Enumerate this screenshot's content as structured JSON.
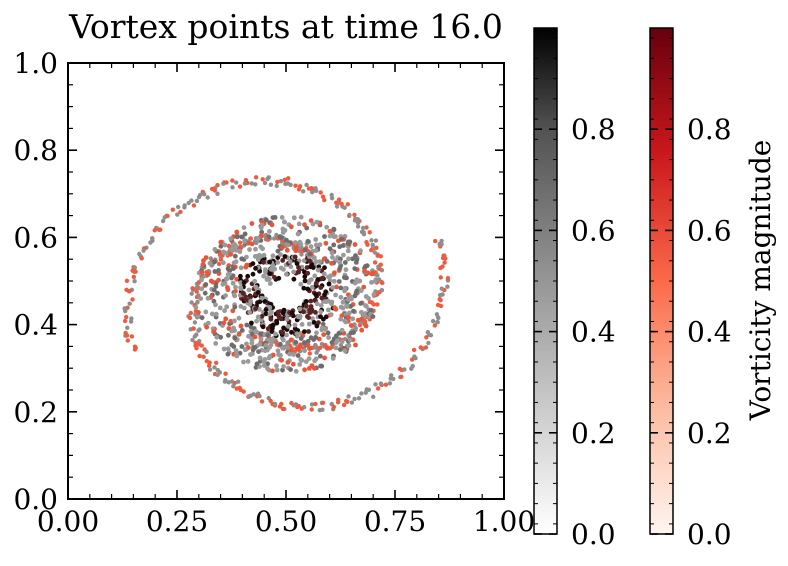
{
  "chart_data": {
    "type": "scatter",
    "title": "Vortex points at time 16.0",
    "xlabel": "",
    "ylabel": "",
    "xlim": [
      0.0,
      1.0
    ],
    "ylim": [
      0.0,
      1.0
    ],
    "x_ticks": [
      "0.00",
      "0.25",
      "0.50",
      "0.75",
      "1.00"
    ],
    "y_ticks": [
      "0.0",
      "0.2",
      "0.4",
      "0.6",
      "0.8",
      "1.0"
    ],
    "grid": false,
    "description_series": "two-armed spiral vortex centred near (0.5, 0.47)",
    "series": [
      {
        "name": "vortex points (grey colormap)",
        "colormap": "Greys",
        "count_estimate": 1400
      },
      {
        "name": "vortex points (red colormap)",
        "colormap": "Reds",
        "count_estimate": 600
      }
    ],
    "colorbars": [
      {
        "name": "greys",
        "label": "",
        "range": [
          0.0,
          1.0
        ],
        "ticks": [
          "0.0",
          "0.2",
          "0.4",
          "0.6",
          "0.8"
        ],
        "cmap_low": "#ffffff",
        "cmap_high": "#000000"
      },
      {
        "name": "reds",
        "label": "Vorticity magnitude",
        "range": [
          0.0,
          1.0
        ],
        "ticks": [
          "0.0",
          "0.2",
          "0.4",
          "0.6",
          "0.8"
        ],
        "cmap_low": "#fff5f0",
        "cmap_high": "#67000d"
      }
    ]
  }
}
